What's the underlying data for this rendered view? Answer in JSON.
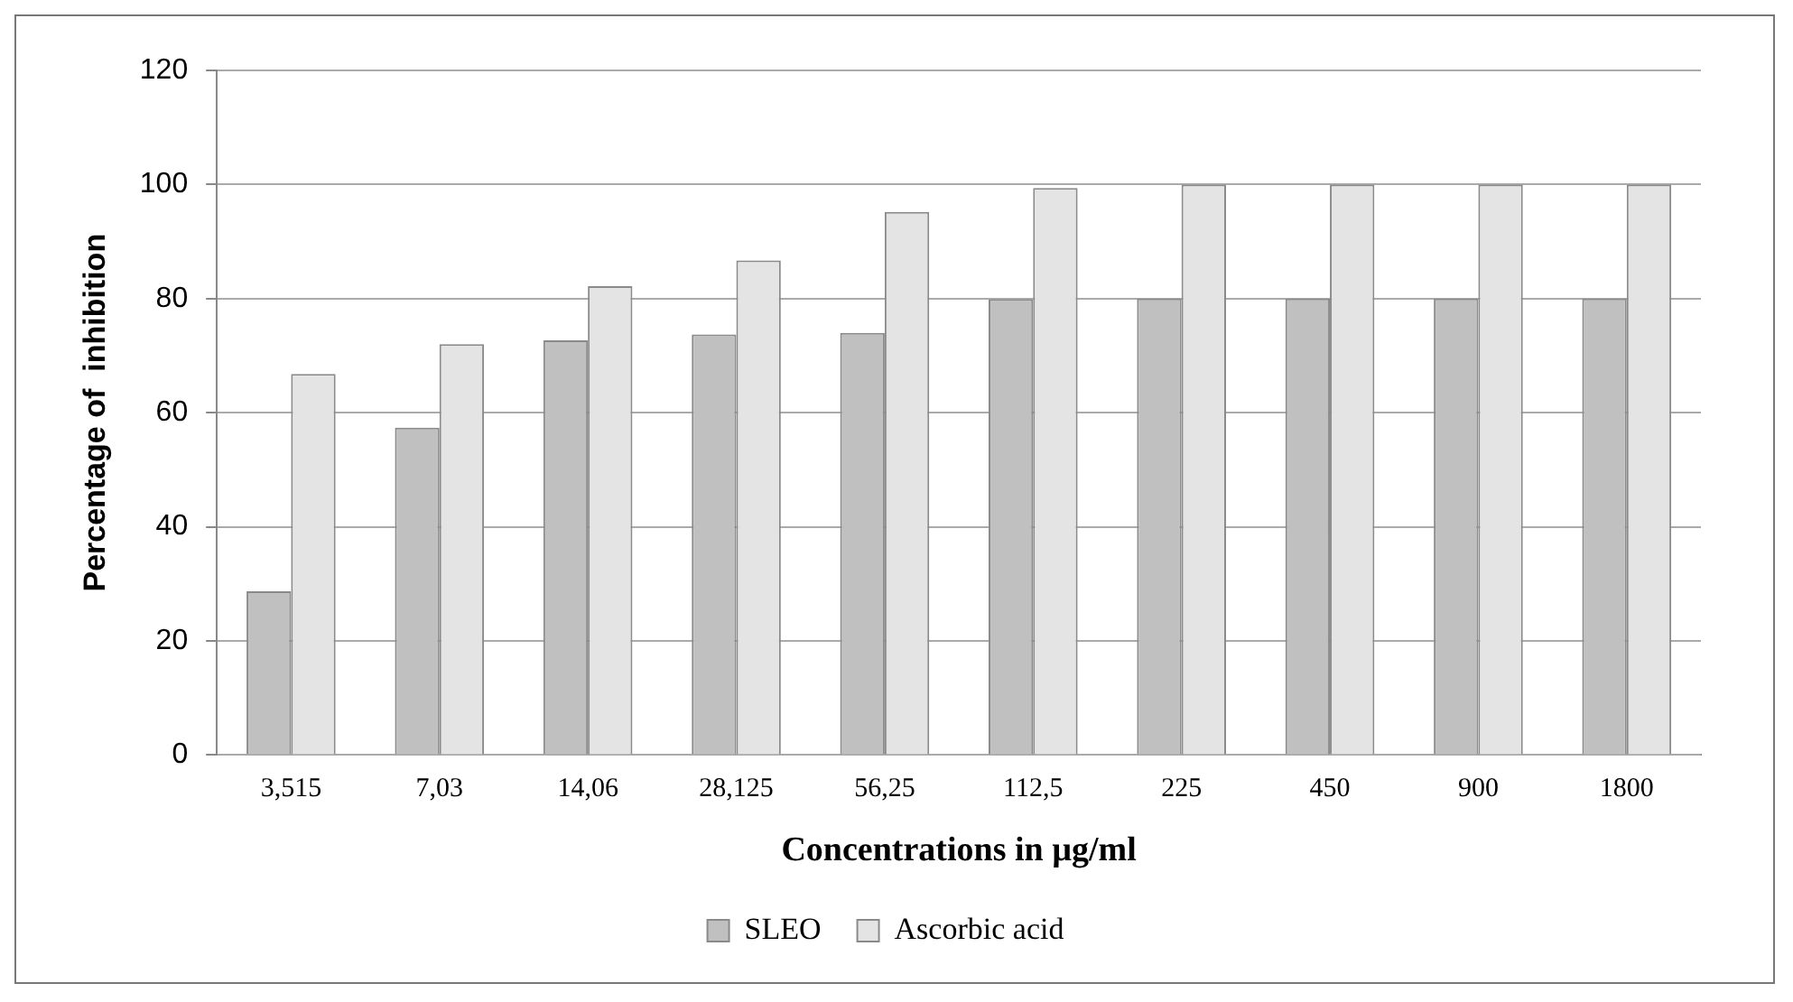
{
  "chart_data": {
    "type": "bar",
    "xlabel": "Concentrations in µg/ml",
    "ylabel": "Percentage of  inhibition",
    "categories": [
      "3,515",
      "7,03",
      "14,06",
      "28,125",
      "56,25",
      "112,5",
      "225",
      "450",
      "900",
      "1800"
    ],
    "series": [
      {
        "name": "SLEO",
        "color": "#c0c0c0",
        "values": [
          28.7,
          57.4,
          72.7,
          73.7,
          74,
          79.9,
          80,
          80,
          80,
          80
        ]
      },
      {
        "name": "Ascorbic acid",
        "color": "#e4e4e4",
        "values": [
          66.8,
          72,
          82.2,
          86.7,
          95.2,
          99.4,
          100,
          100,
          100,
          100
        ]
      }
    ],
    "ylim": [
      0,
      120
    ],
    "yticks": [
      0,
      20,
      40,
      60,
      80,
      100,
      120
    ],
    "grid": "y",
    "legend": "bottom"
  }
}
